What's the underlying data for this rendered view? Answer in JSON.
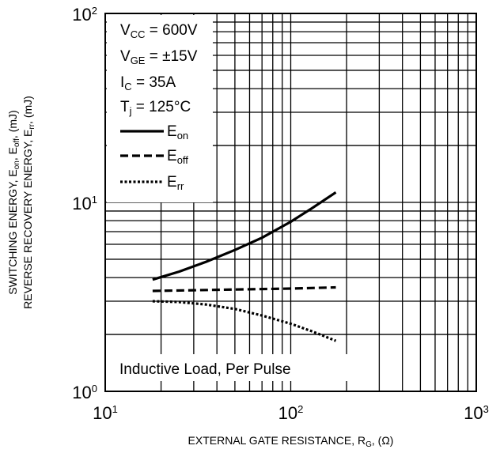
{
  "chart_data": {
    "type": "line",
    "xscale": "log",
    "yscale": "log",
    "xlim": [
      10,
      1000
    ],
    "ylim": [
      1,
      100
    ],
    "grid": true,
    "xticks": [
      {
        "value": 10,
        "base": "10",
        "exp": "1"
      },
      {
        "value": 100,
        "base": "10",
        "exp": "2"
      },
      {
        "value": 1000,
        "base": "10",
        "exp": "3"
      }
    ],
    "yticks": [
      {
        "value": 1,
        "base": "10",
        "exp": "0"
      },
      {
        "value": 10,
        "base": "10",
        "exp": "1"
      },
      {
        "value": 100,
        "base": "10",
        "exp": "2"
      }
    ],
    "xlabel": {
      "text": "EXTERNAL GATE RESISTANCE, R",
      "sub": "G",
      "after": ", (Ω)"
    },
    "ylabel": {
      "line1": {
        "pre": "SWITCHING ENERGY, E",
        "s1": "on",
        "mid": ", E",
        "s2": "off",
        "post": ", (mJ)"
      },
      "line2": {
        "pre": "REVERSE RECOVERY ENERGY, E",
        "s1": "rr",
        "post": ", (mJ)"
      }
    },
    "conditions": [
      {
        "pre": "V",
        "sub": "CC",
        "post": " = 600V"
      },
      {
        "pre": "V",
        "sub": "GE",
        "post": " = ±15V"
      },
      {
        "pre": "I",
        "sub": "C",
        "post": " = 35A"
      },
      {
        "pre": "T",
        "sub": "j",
        "post": " = 125°C"
      }
    ],
    "annotation": "Inductive Load, Per Pulse",
    "legend_position": "top-left",
    "series": [
      {
        "name": "E",
        "sub": "on",
        "style": "solid",
        "x": [
          18,
          25,
          35,
          50,
          70,
          100,
          130,
          175
        ],
        "y": [
          3.9,
          4.3,
          4.85,
          5.6,
          6.5,
          7.9,
          9.3,
          11.3
        ]
      },
      {
        "name": "E",
        "sub": "off",
        "style": "dashed",
        "x": [
          18,
          30,
          50,
          100,
          175
        ],
        "y": [
          3.4,
          3.43,
          3.46,
          3.5,
          3.55
        ]
      },
      {
        "name": "E",
        "sub": "rr",
        "style": "dotted",
        "x": [
          18,
          25,
          35,
          50,
          70,
          100,
          130,
          175
        ],
        "y": [
          3.0,
          2.97,
          2.88,
          2.73,
          2.52,
          2.28,
          2.08,
          1.85
        ]
      }
    ]
  }
}
